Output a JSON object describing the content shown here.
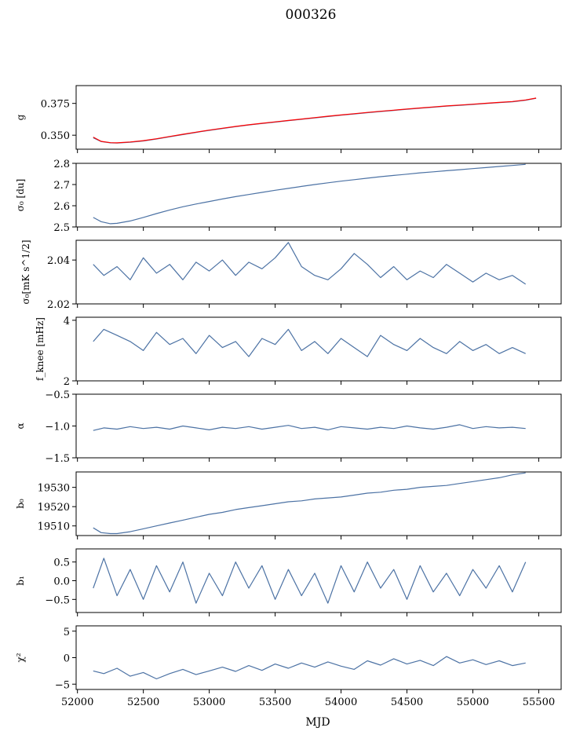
{
  "figure": {
    "title": "000326",
    "xlabel": "MJD"
  },
  "chart_data": [
    {
      "type": "line",
      "panel": "g",
      "ylabel": "g",
      "xlim": [
        51990,
        55670
      ],
      "ylim": [
        0.339,
        0.389
      ],
      "yticks": [
        0.35,
        0.375
      ],
      "ytick_labels": [
        "0.350",
        "0.375"
      ],
      "series": [
        {
          "name": "g",
          "color": "#4c72a4",
          "x": [
            52120,
            52180,
            52250,
            52300,
            52400,
            52500,
            52600,
            52700,
            52800,
            52900,
            53000,
            53100,
            53200,
            53300,
            53400,
            53500,
            53600,
            53700,
            53800,
            53900,
            54000,
            54100,
            54200,
            54300,
            54400,
            54500,
            54600,
            54700,
            54800,
            54900,
            55000,
            55100,
            55200,
            55300,
            55400,
            55480
          ],
          "y": [
            0.348,
            0.345,
            0.344,
            0.3438,
            0.3445,
            0.3455,
            0.347,
            0.3488,
            0.3505,
            0.3522,
            0.3538,
            0.3553,
            0.3567,
            0.358,
            0.3592,
            0.3603,
            0.3614,
            0.3625,
            0.3636,
            0.3647,
            0.3657,
            0.3667,
            0.3677,
            0.3686,
            0.3695,
            0.3704,
            0.3712,
            0.372,
            0.3728,
            0.3735,
            0.3742,
            0.3749,
            0.3756,
            0.3763,
            0.3775,
            0.379
          ]
        },
        {
          "name": "g fit",
          "color": "#ff0000",
          "x": [
            52120,
            52180,
            52250,
            52300,
            52400,
            52500,
            52600,
            52700,
            52800,
            52900,
            53000,
            53100,
            53200,
            53300,
            53400,
            53500,
            53600,
            53700,
            53800,
            53900,
            54000,
            54100,
            54200,
            54300,
            54400,
            54500,
            54600,
            54700,
            54800,
            54900,
            55000,
            55100,
            55200,
            55300,
            55400,
            55480
          ],
          "y": [
            0.3485,
            0.3452,
            0.3441,
            0.344,
            0.3447,
            0.3457,
            0.3472,
            0.349,
            0.3507,
            0.3524,
            0.354,
            0.3555,
            0.3569,
            0.3582,
            0.3594,
            0.3605,
            0.3616,
            0.3627,
            0.3638,
            0.3649,
            0.3659,
            0.3669,
            0.3679,
            0.3688,
            0.3697,
            0.3706,
            0.3714,
            0.3722,
            0.373,
            0.3737,
            0.3744,
            0.3751,
            0.3758,
            0.3765,
            0.3777,
            0.3792
          ]
        }
      ]
    },
    {
      "type": "line",
      "panel": "sigma0-du",
      "ylabel": "σ₀ [du]",
      "xlim": [
        51990,
        55670
      ],
      "ylim": [
        2.5,
        2.8
      ],
      "yticks": [
        2.5,
        2.6,
        2.7,
        2.8
      ],
      "ytick_labels": [
        "2.5",
        "2.6",
        "2.7",
        "2.8"
      ],
      "series": [
        {
          "name": "sigma0 du",
          "color": "#4c72a4",
          "x": [
            52120,
            52180,
            52250,
            52300,
            52400,
            52500,
            52600,
            52700,
            52800,
            52900,
            53000,
            53100,
            53200,
            53300,
            53400,
            53500,
            53600,
            53700,
            53800,
            53900,
            54000,
            54100,
            54200,
            54300,
            54400,
            54500,
            54600,
            54700,
            54800,
            54900,
            55000,
            55100,
            55200,
            55300,
            55400
          ],
          "y": [
            2.545,
            2.525,
            2.515,
            2.517,
            2.528,
            2.545,
            2.563,
            2.58,
            2.595,
            2.608,
            2.62,
            2.632,
            2.643,
            2.653,
            2.663,
            2.673,
            2.682,
            2.691,
            2.7,
            2.708,
            2.716,
            2.723,
            2.73,
            2.737,
            2.743,
            2.749,
            2.755,
            2.76,
            2.765,
            2.77,
            2.775,
            2.78,
            2.785,
            2.79,
            2.795
          ]
        }
      ]
    },
    {
      "type": "line",
      "panel": "sigma0-mk",
      "ylabel": "σ₀[mK s^1/2]",
      "xlim": [
        51990,
        55670
      ],
      "ylim": [
        2.02,
        2.049
      ],
      "yticks": [
        2.02,
        2.04
      ],
      "ytick_labels": [
        "2.02",
        "2.04"
      ],
      "series": [
        {
          "name": "sigma0 mK",
          "color": "#4c72a4",
          "x": [
            52120,
            52200,
            52300,
            52400,
            52500,
            52600,
            52700,
            52800,
            52900,
            53000,
            53100,
            53200,
            53300,
            53400,
            53500,
            53600,
            53700,
            53800,
            53900,
            54000,
            54100,
            54200,
            54300,
            54400,
            54500,
            54600,
            54700,
            54800,
            54900,
            55000,
            55100,
            55200,
            55300,
            55400
          ],
          "y": [
            2.038,
            2.033,
            2.037,
            2.031,
            2.041,
            2.034,
            2.038,
            2.031,
            2.039,
            2.035,
            2.04,
            2.033,
            2.039,
            2.036,
            2.041,
            2.048,
            2.037,
            2.033,
            2.031,
            2.036,
            2.043,
            2.038,
            2.032,
            2.037,
            2.031,
            2.035,
            2.032,
            2.038,
            2.034,
            2.03,
            2.034,
            2.031,
            2.033,
            2.029
          ]
        }
      ]
    },
    {
      "type": "line",
      "panel": "fknee",
      "ylabel": "f_knee [mHz]",
      "xlim": [
        51990,
        55670
      ],
      "ylim": [
        2,
        4.1
      ],
      "yticks": [
        2,
        4
      ],
      "ytick_labels": [
        "2",
        "4"
      ],
      "series": [
        {
          "name": "fknee",
          "color": "#4c72a4",
          "x": [
            52120,
            52200,
            52300,
            52400,
            52500,
            52600,
            52700,
            52800,
            52900,
            53000,
            53100,
            53200,
            53300,
            53400,
            53500,
            53600,
            53700,
            53800,
            53900,
            54000,
            54100,
            54200,
            54300,
            54400,
            54500,
            54600,
            54700,
            54800,
            54900,
            55000,
            55100,
            55200,
            55300,
            55400
          ],
          "y": [
            3.3,
            3.7,
            3.5,
            3.3,
            3.0,
            3.6,
            3.2,
            3.4,
            2.9,
            3.5,
            3.1,
            3.3,
            2.8,
            3.4,
            3.2,
            3.7,
            3.0,
            3.3,
            2.9,
            3.4,
            3.1,
            2.8,
            3.5,
            3.2,
            3.0,
            3.4,
            3.1,
            2.9,
            3.3,
            3.0,
            3.2,
            2.9,
            3.1,
            2.9
          ]
        }
      ]
    },
    {
      "type": "line",
      "panel": "alpha",
      "ylabel": "α",
      "xlim": [
        51990,
        55670
      ],
      "ylim": [
        -1.5,
        -0.5
      ],
      "yticks": [
        -1.5,
        -1.0,
        -0.5
      ],
      "ytick_labels": [
        "−1.5",
        "−1.0",
        "−0.5"
      ],
      "series": [
        {
          "name": "alpha",
          "color": "#4c72a4",
          "x": [
            52120,
            52200,
            52300,
            52400,
            52500,
            52600,
            52700,
            52800,
            52900,
            53000,
            53100,
            53200,
            53300,
            53400,
            53500,
            53600,
            53700,
            53800,
            53900,
            54000,
            54100,
            54200,
            54300,
            54400,
            54500,
            54600,
            54700,
            54800,
            54900,
            55000,
            55100,
            55200,
            55300,
            55400
          ],
          "y": [
            -1.07,
            -1.03,
            -1.05,
            -1.01,
            -1.04,
            -1.02,
            -1.05,
            -1.0,
            -1.03,
            -1.06,
            -1.02,
            -1.04,
            -1.01,
            -1.05,
            -1.02,
            -0.99,
            -1.04,
            -1.02,
            -1.06,
            -1.01,
            -1.03,
            -1.05,
            -1.02,
            -1.04,
            -1.0,
            -1.03,
            -1.05,
            -1.02,
            -0.98,
            -1.04,
            -1.01,
            -1.03,
            -1.02,
            -1.04
          ]
        }
      ]
    },
    {
      "type": "line",
      "panel": "b0",
      "ylabel": "b₀",
      "xlim": [
        51990,
        55670
      ],
      "ylim": [
        19505,
        19538
      ],
      "yticks": [
        19510,
        19520,
        19530
      ],
      "ytick_labels": [
        "19510",
        "19520",
        "19530"
      ],
      "series": [
        {
          "name": "b0",
          "color": "#4c72a4",
          "x": [
            52120,
            52180,
            52250,
            52300,
            52400,
            52500,
            52600,
            52700,
            52800,
            52900,
            53000,
            53100,
            53200,
            53300,
            53400,
            53500,
            53600,
            53700,
            53800,
            53900,
            54000,
            54100,
            54200,
            54300,
            54400,
            54500,
            54600,
            54700,
            54800,
            54900,
            55000,
            55100,
            55200,
            55300,
            55400
          ],
          "y": [
            19509,
            19506.5,
            19506,
            19506,
            19507,
            19508.5,
            19510,
            19511.5,
            19513,
            19514.5,
            19516,
            19517,
            19518.5,
            19519.5,
            19520.5,
            19521.5,
            19522.5,
            19523,
            19524,
            19524.5,
            19525,
            19526,
            19527,
            19527.5,
            19528.5,
            19529,
            19530,
            19530.5,
            19531,
            19532,
            19533,
            19534,
            19535,
            19536.5,
            19537.5
          ]
        }
      ]
    },
    {
      "type": "line",
      "panel": "b1",
      "ylabel": "b₁",
      "xlim": [
        51990,
        55670
      ],
      "ylim": [
        -0.85,
        0.85
      ],
      "yticks": [
        -0.5,
        0.0,
        0.5
      ],
      "ytick_labels": [
        "−0.5",
        "0.0",
        "0.5"
      ],
      "series": [
        {
          "name": "b1",
          "color": "#4c72a4",
          "x": [
            52120,
            52200,
            52300,
            52400,
            52500,
            52600,
            52700,
            52800,
            52900,
            53000,
            53100,
            53200,
            53300,
            53400,
            53500,
            53600,
            53700,
            53800,
            53900,
            54000,
            54100,
            54200,
            54300,
            54400,
            54500,
            54600,
            54700,
            54800,
            54900,
            55000,
            55100,
            55200,
            55300,
            55400
          ],
          "y": [
            -0.2,
            0.6,
            -0.4,
            0.3,
            -0.5,
            0.4,
            -0.3,
            0.5,
            -0.6,
            0.2,
            -0.4,
            0.5,
            -0.2,
            0.4,
            -0.5,
            0.3,
            -0.4,
            0.2,
            -0.6,
            0.4,
            -0.3,
            0.5,
            -0.2,
            0.3,
            -0.5,
            0.4,
            -0.3,
            0.2,
            -0.4,
            0.3,
            -0.2,
            0.4,
            -0.3,
            0.5
          ]
        }
      ]
    },
    {
      "type": "line",
      "panel": "chi2",
      "ylabel": "χ²",
      "xlim": [
        51990,
        55670
      ],
      "ylim": [
        -6,
        6
      ],
      "yticks": [
        -5,
        0,
        5
      ],
      "ytick_labels": [
        "−5",
        "0",
        "5"
      ],
      "series": [
        {
          "name": "chi2",
          "color": "#4c72a4",
          "x": [
            52120,
            52200,
            52300,
            52400,
            52500,
            52600,
            52700,
            52800,
            52900,
            53000,
            53100,
            53200,
            53300,
            53400,
            53500,
            53600,
            53700,
            53800,
            53900,
            54000,
            54100,
            54200,
            54300,
            54400,
            54500,
            54600,
            54700,
            54800,
            54900,
            55000,
            55100,
            55200,
            55300,
            55400
          ],
          "y": [
            -2.5,
            -3.0,
            -2.0,
            -3.5,
            -2.8,
            -4.0,
            -3.0,
            -2.2,
            -3.2,
            -2.5,
            -1.8,
            -2.6,
            -1.5,
            -2.4,
            -1.2,
            -2.0,
            -1.0,
            -1.8,
            -0.8,
            -1.6,
            -2.2,
            -0.6,
            -1.4,
            -0.2,
            -1.2,
            -0.5,
            -1.5,
            0.2,
            -1.0,
            -0.4,
            -1.3,
            -0.6,
            -1.5,
            -1.0
          ]
        }
      ]
    }
  ],
  "xaxis": {
    "ticks": [
      52000,
      52500,
      53000,
      53500,
      54000,
      54500,
      55000,
      55500
    ],
    "tick_labels": [
      "52000",
      "52500",
      "53000",
      "53500",
      "54000",
      "54500",
      "55000",
      "55500"
    ]
  }
}
